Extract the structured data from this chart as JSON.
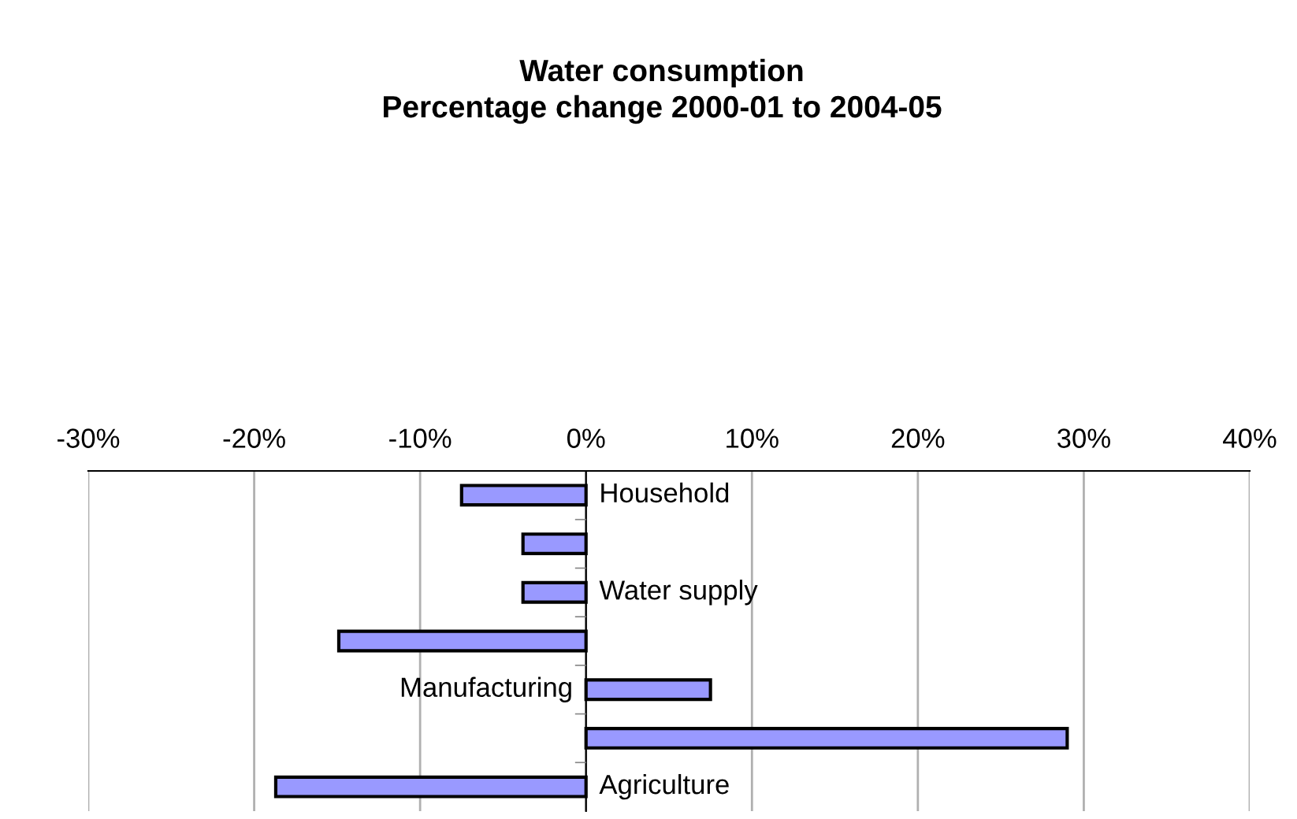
{
  "chart_data": {
    "type": "bar",
    "orientation": "horizontal",
    "title": "Water consumption\nPercentage change 2000-01 to 2004-05",
    "categories": [
      "Household",
      null,
      "Water supply",
      null,
      "Manufacturing",
      null,
      "Agriculture"
    ],
    "values": [
      -7.5,
      -3.8,
      -3.8,
      -14.9,
      7.5,
      29.0,
      -18.7
    ],
    "color": "#9999ff",
    "xlim": [
      -30,
      40
    ],
    "xticks": [
      {
        "value": -30,
        "label": "-30%"
      },
      {
        "value": -20,
        "label": "-20%"
      },
      {
        "value": -10,
        "label": "-10%"
      },
      {
        "value": 0,
        "label": "0%"
      },
      {
        "value": 10,
        "label": "10%"
      },
      {
        "value": 20,
        "label": "20%"
      },
      {
        "value": 30,
        "label": "30%"
      },
      {
        "value": 40,
        "label": "40%"
      }
    ],
    "grid": "x",
    "legend": false
  }
}
